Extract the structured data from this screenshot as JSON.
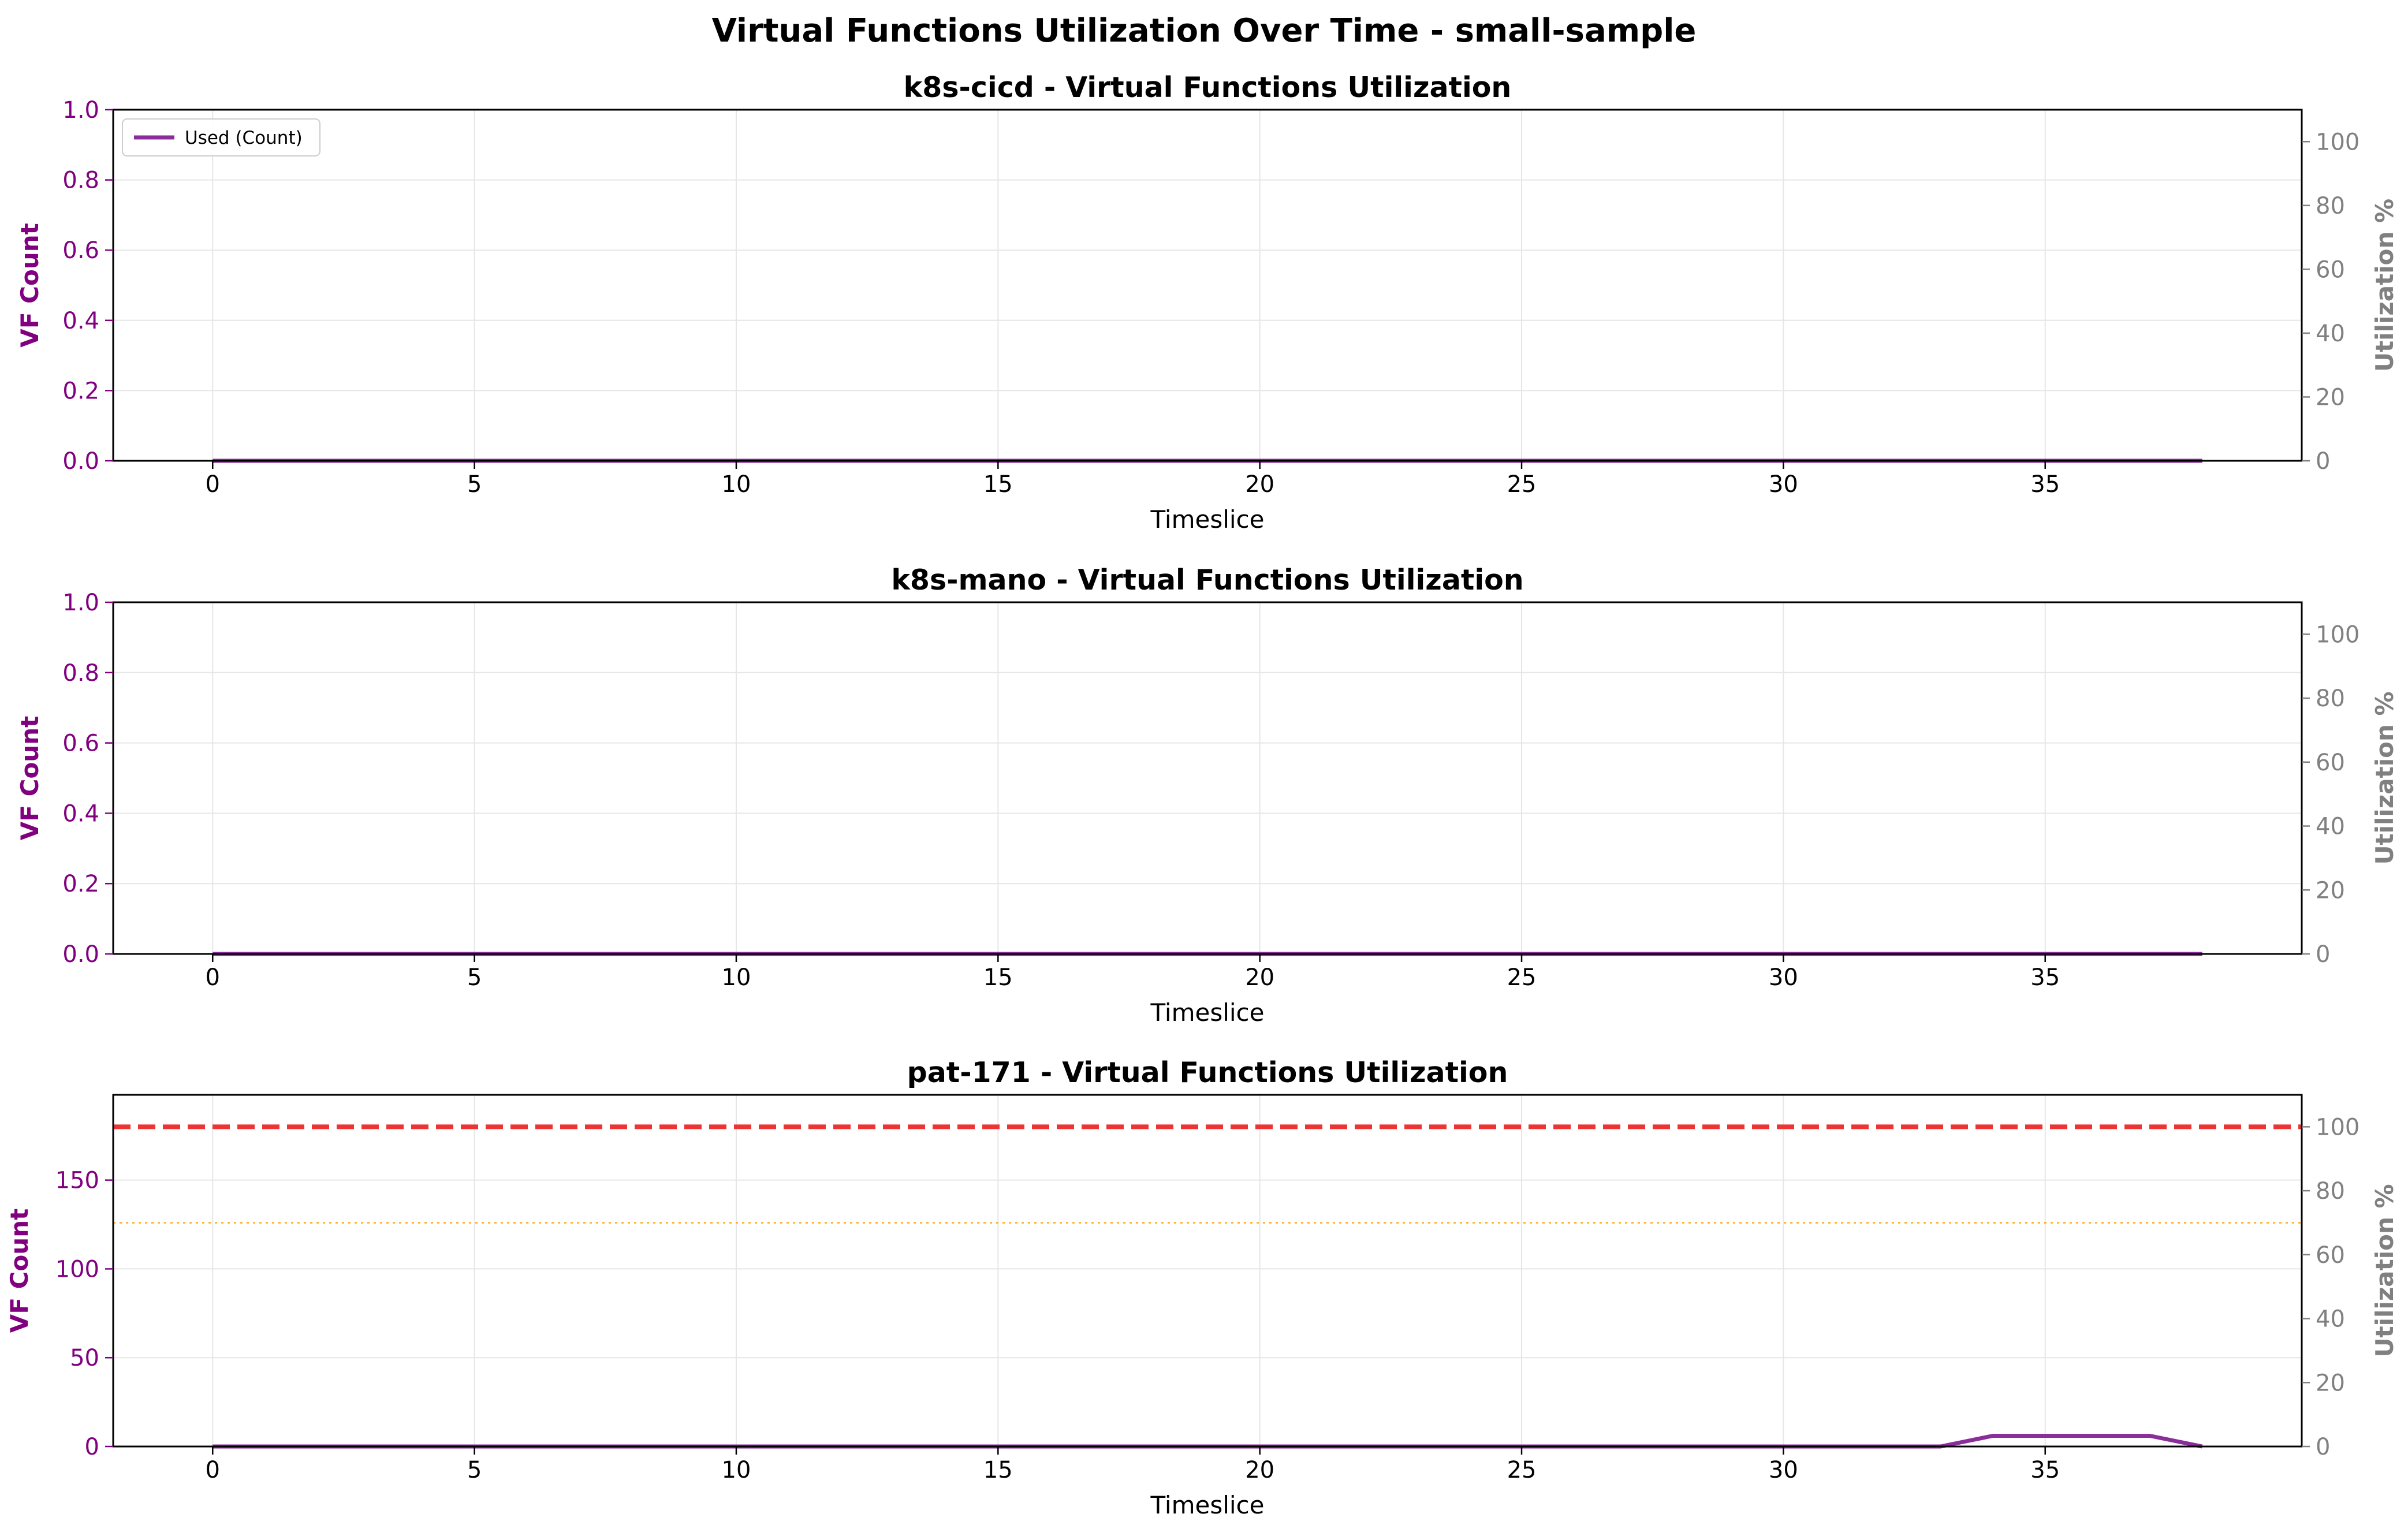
{
  "figure": {
    "suptitle": "Virtual Functions Utilization Over Time - small-sample",
    "colors": {
      "used": "#8b2d9b",
      "left_axis": "#800080",
      "right_axis": "#808080",
      "capacity_line": "#ee3333",
      "threshold_line": "#ffa500",
      "grid": "#e6e6e6"
    }
  },
  "chart_data": [
    {
      "type": "line",
      "title": "k8s-cicd - Virtual Functions Utilization",
      "xlabel": "Timeslice",
      "ylabel": "VF Count",
      "y2label": "Utilization %",
      "xlim": [
        -1.9,
        39.9
      ],
      "ylim": [
        0,
        1
      ],
      "y2lim": [
        0,
        110
      ],
      "xticks": [
        0,
        5,
        10,
        15,
        20,
        25,
        30,
        35
      ],
      "yticks": [
        0.0,
        0.2,
        0.4,
        0.6,
        0.8,
        1.0
      ],
      "y2ticks": [
        0,
        20,
        40,
        60,
        80,
        100
      ],
      "grid": true,
      "legend": {
        "position": "upper-left",
        "entries": [
          "Used (Count)"
        ]
      },
      "series": [
        {
          "name": "Used (Count)",
          "x": [
            0,
            38
          ],
          "values": [
            0,
            0
          ]
        }
      ],
      "hlines": []
    },
    {
      "type": "line",
      "title": "k8s-mano - Virtual Functions Utilization",
      "xlabel": "Timeslice",
      "ylabel": "VF Count",
      "y2label": "Utilization %",
      "xlim": [
        -1.9,
        39.9
      ],
      "ylim": [
        0,
        1
      ],
      "y2lim": [
        0,
        110
      ],
      "xticks": [
        0,
        5,
        10,
        15,
        20,
        25,
        30,
        35
      ],
      "yticks": [
        0.0,
        0.2,
        0.4,
        0.6,
        0.8,
        1.0
      ],
      "y2ticks": [
        0,
        20,
        40,
        60,
        80,
        100
      ],
      "grid": true,
      "legend": null,
      "series": [
        {
          "name": "Used (Count)",
          "x": [
            0,
            38
          ],
          "values": [
            0,
            0
          ]
        }
      ],
      "hlines": []
    },
    {
      "type": "line",
      "title": "pat-171 - Virtual Functions Utilization",
      "xlabel": "Timeslice",
      "ylabel": "VF Count",
      "y2label": "Utilization %",
      "xlim": [
        -1.9,
        39.9
      ],
      "ylim": [
        0,
        198
      ],
      "y2lim": [
        0,
        110
      ],
      "xticks": [
        0,
        5,
        10,
        15,
        20,
        25,
        30,
        35
      ],
      "yticks": [
        0,
        50,
        100,
        150
      ],
      "y2ticks": [
        0,
        20,
        40,
        60,
        80,
        100
      ],
      "grid": true,
      "legend": null,
      "series": [
        {
          "name": "Used (Count)",
          "x": [
            0,
            33,
            34,
            37,
            38
          ],
          "values": [
            0,
            0,
            6,
            6,
            0
          ]
        }
      ],
      "hlines": [
        {
          "y": 180,
          "style": "dashed",
          "color": "capacity_line"
        },
        {
          "y": 126,
          "style": "dotted",
          "color": "threshold_line"
        }
      ]
    }
  ]
}
